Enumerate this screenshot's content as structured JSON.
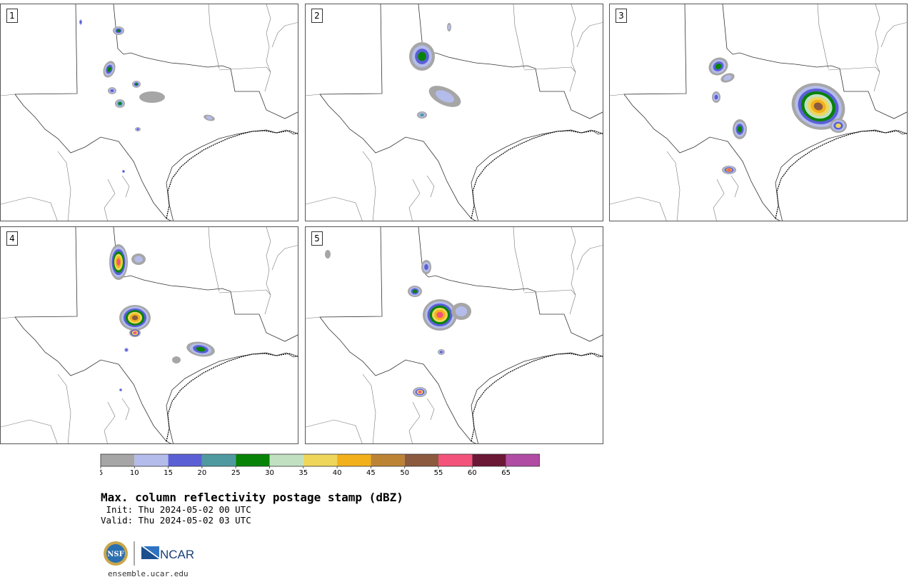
{
  "panels": [
    {
      "label": "1"
    },
    {
      "label": "2"
    },
    {
      "label": "3"
    },
    {
      "label": "4"
    },
    {
      "label": "5"
    }
  ],
  "colorbar": {
    "ticks": [
      "5",
      "10",
      "15",
      "20",
      "25",
      "30",
      "35",
      "40",
      "45",
      "50",
      "55",
      "60",
      "65"
    ],
    "colors": [
      "#a6a6a6",
      "#b4bceb",
      "#5b5fd6",
      "#4e9aa0",
      "#078307",
      "#c1e0c1",
      "#eed65b",
      "#f2b01a",
      "#bd8335",
      "#8c5a3f",
      "#f3527a",
      "#6b1736",
      "#b04ca3"
    ]
  },
  "title": "Max. column reflectivity postage stamp (dBZ)",
  "init_label": " Init: Thu 2024-05-02 00 UTC",
  "valid_label": "Valid: Thu 2024-05-02 03 UTC",
  "logos": {
    "nsf": "NSF",
    "ncar": "NCAR"
  },
  "website": "ensemble.ucar.edu"
}
